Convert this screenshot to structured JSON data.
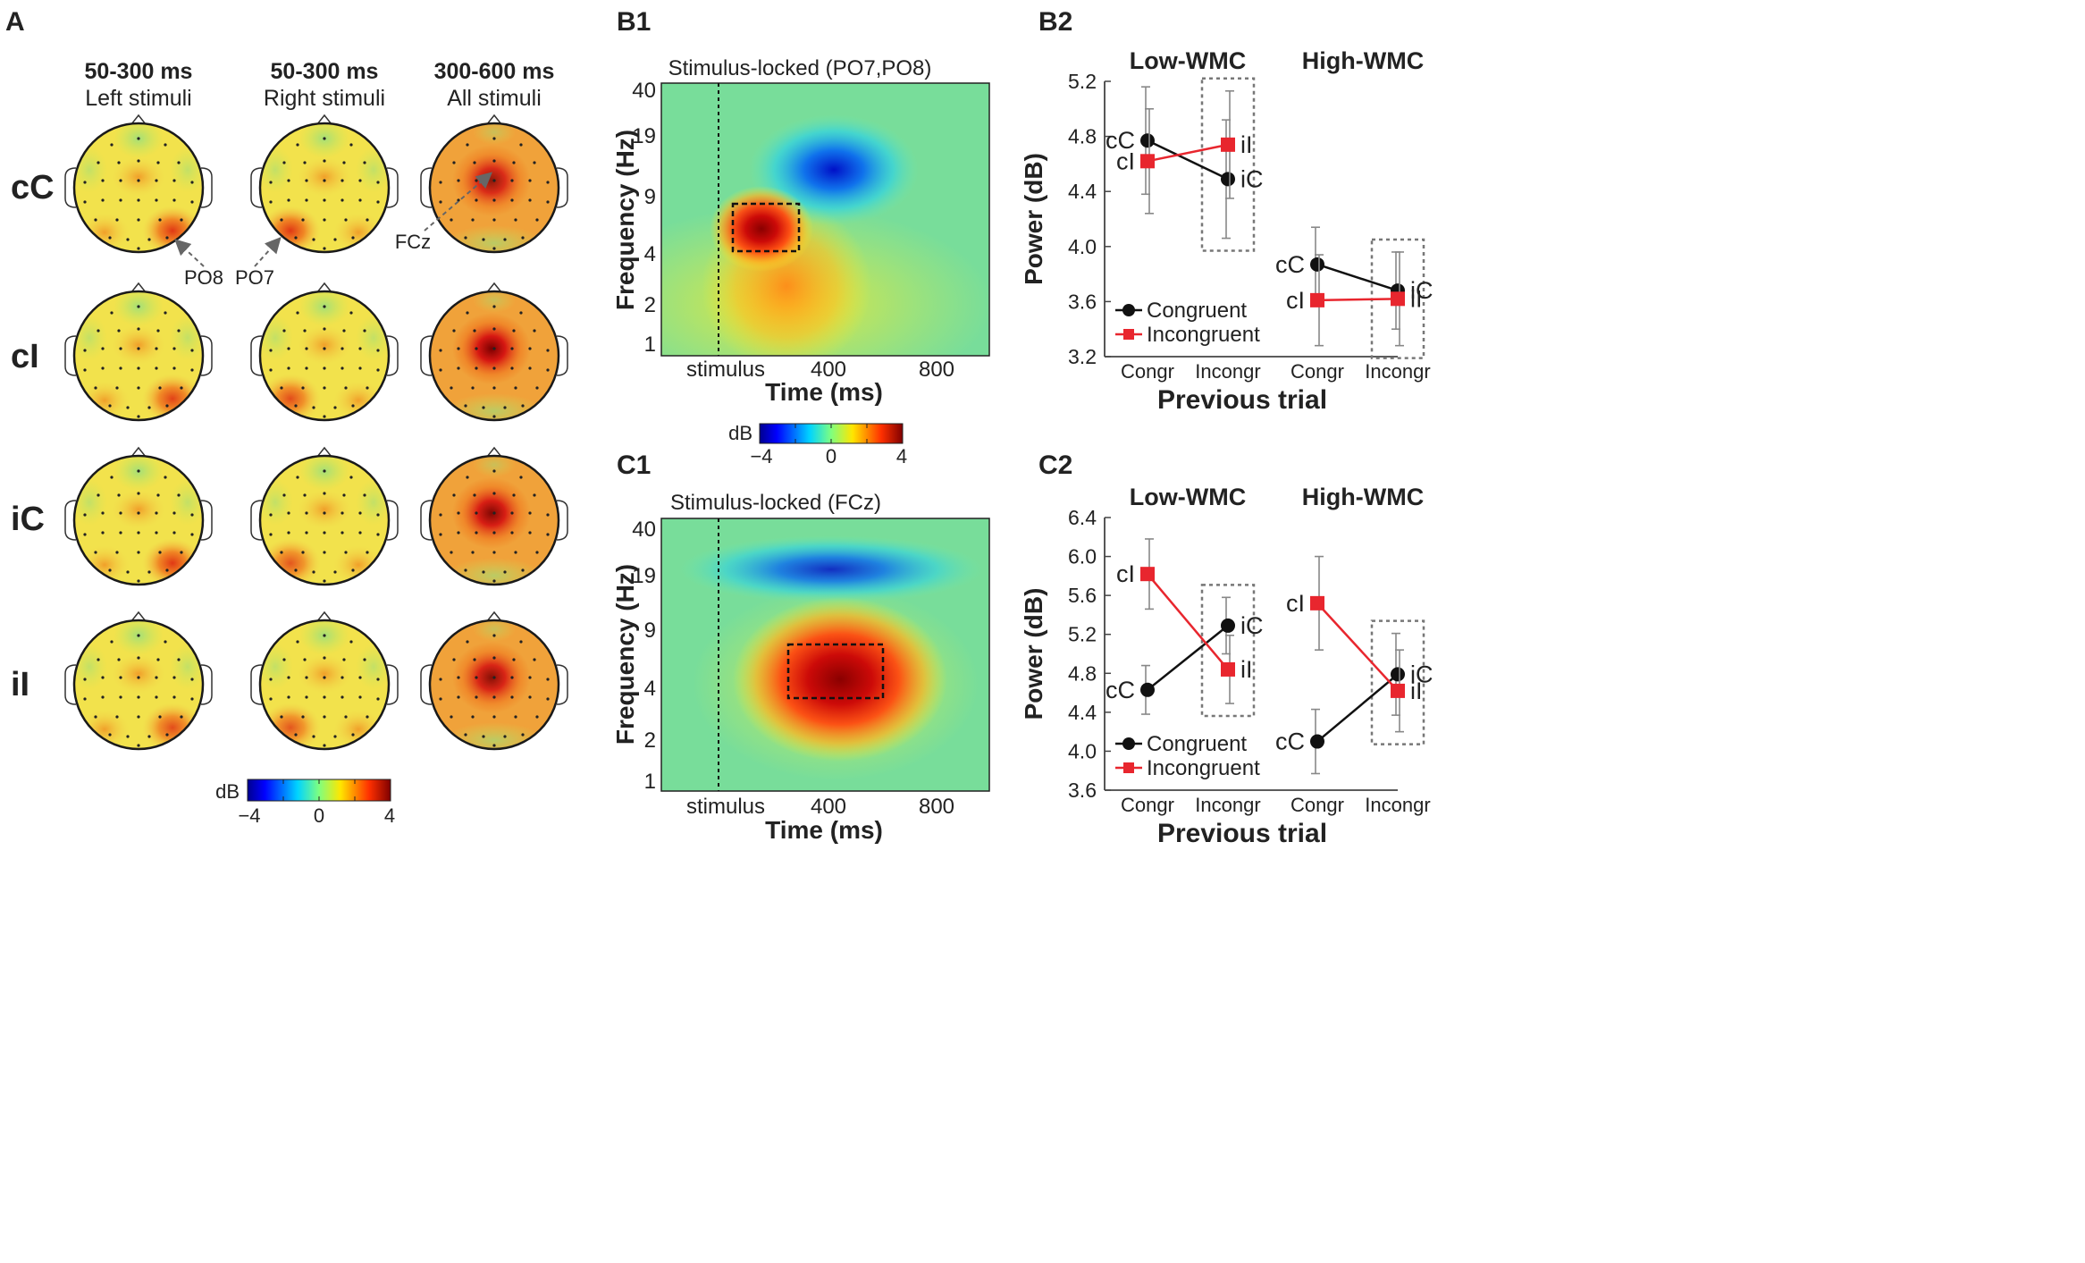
{
  "panel_labels": {
    "a": "A",
    "b1": "B1",
    "b2": "B2",
    "c1": "C1",
    "c2": "C2"
  },
  "panel_a": {
    "columns": [
      {
        "window": "50-300 ms",
        "stimuli": "Left stimuli"
      },
      {
        "window": "50-300 ms",
        "stimuli": "Right stimuli"
      },
      {
        "window": "300-600 ms",
        "stimuli": "All stimuli"
      }
    ],
    "rows": [
      "cC",
      "cI",
      "iC",
      "iI"
    ],
    "electrodes": {
      "po8": "PO8",
      "po7": "PO7",
      "fcz": "FCz"
    },
    "colorbar": {
      "label": "dB",
      "min": "−4",
      "mid": "0",
      "max": "4",
      "range_db": [
        -4,
        4
      ]
    },
    "hotspot_intensity": [
      [
        0.55,
        0.55,
        0.85
      ],
      [
        0.5,
        0.45,
        1.0
      ],
      [
        0.55,
        0.4,
        0.95
      ],
      [
        0.45,
        0.4,
        0.9
      ]
    ],
    "colors": {
      "hot": "#e32a12",
      "warm": "#f6a020",
      "base": "#f3e14a",
      "cool": "#a9e070",
      "center_hot": "#8b0000"
    }
  },
  "panel_b1": {
    "title": "Stimulus-locked (PO7,PO8)",
    "ylabel": "Frequency (Hz)",
    "xlabel": "Time (ms)",
    "yticks": [
      "40",
      "19",
      "9",
      "4",
      "2",
      "1"
    ],
    "xticks": [
      "stimulus",
      "400",
      "800"
    ]
  },
  "panel_c1": {
    "title": "Stimulus-locked (FCz)",
    "ylabel": "Frequency (Hz)",
    "xlabel": "Time (ms)",
    "yticks": [
      "40",
      "19",
      "9",
      "4",
      "2",
      "1"
    ],
    "xticks": [
      "stimulus",
      "400",
      "800"
    ]
  },
  "tf_colorbar": {
    "label": "dB",
    "min": "−4",
    "mid": "0",
    "max": "4"
  },
  "chart_data": [
    {
      "id": "B2",
      "type": "line",
      "ylabel": "Power (dB)",
      "xlabel": "Previous trial",
      "ylim": [
        3.2,
        5.2
      ],
      "yticks": [
        "3.2",
        "3.6",
        "4.0",
        "4.4",
        "4.8",
        "5.2"
      ],
      "groups": [
        "Low-WMC",
        "High-WMC"
      ],
      "categories": [
        "Congr",
        "Incongr"
      ],
      "legend": [
        "Congruent",
        "Incongruent"
      ],
      "series": [
        {
          "name": "Congruent",
          "color": "#111111",
          "group": "Low-WMC",
          "values": [
            4.77,
            4.49
          ],
          "errors": [
            0.39,
            0.43
          ],
          "labels": [
            "cC",
            "iC"
          ]
        },
        {
          "name": "Incongruent",
          "color": "#e8262e",
          "group": "Low-WMC",
          "values": [
            4.62,
            4.74
          ],
          "errors": [
            0.38,
            0.39
          ],
          "labels": [
            "cI",
            "iI"
          ]
        },
        {
          "name": "Congruent",
          "color": "#111111",
          "group": "High-WMC",
          "values": [
            3.87,
            3.68
          ],
          "errors": [
            0.27,
            0.28
          ],
          "labels": [
            "cC",
            "iC"
          ]
        },
        {
          "name": "Incongruent",
          "color": "#e8262e",
          "group": "High-WMC",
          "values": [
            3.61,
            3.62
          ],
          "errors": [
            0.33,
            0.34
          ],
          "labels": [
            "cI",
            "iI"
          ]
        }
      ]
    },
    {
      "id": "C2",
      "type": "line",
      "ylabel": "Power (dB)",
      "xlabel": "Previous trial",
      "ylim": [
        3.6,
        6.4
      ],
      "yticks": [
        "3.6",
        "4.0",
        "4.4",
        "4.8",
        "5.2",
        "5.6",
        "6.0",
        "6.4"
      ],
      "groups": [
        "Low-WMC",
        "High-WMC"
      ],
      "categories": [
        "Congr",
        "Incongr"
      ],
      "legend": [
        "Congruent",
        "Incongruent"
      ],
      "series": [
        {
          "name": "Congruent",
          "color": "#111111",
          "group": "Low-WMC",
          "values": [
            4.63,
            5.29
          ],
          "errors": [
            0.25,
            0.29
          ],
          "labels": [
            "cC",
            "iC"
          ]
        },
        {
          "name": "Incongruent",
          "color": "#e8262e",
          "group": "Low-WMC",
          "values": [
            5.82,
            4.84
          ],
          "errors": [
            0.36,
            0.35
          ],
          "labels": [
            "cI",
            "iI"
          ]
        },
        {
          "name": "Congruent",
          "color": "#111111",
          "group": "High-WMC",
          "values": [
            4.1,
            4.79
          ],
          "errors": [
            0.33,
            0.42
          ],
          "labels": [
            "cC",
            "iC"
          ]
        },
        {
          "name": "Incongruent",
          "color": "#e8262e",
          "group": "High-WMC",
          "values": [
            5.52,
            4.62
          ],
          "errors": [
            0.48,
            0.42
          ],
          "labels": [
            "cI",
            "iI"
          ]
        }
      ]
    }
  ]
}
